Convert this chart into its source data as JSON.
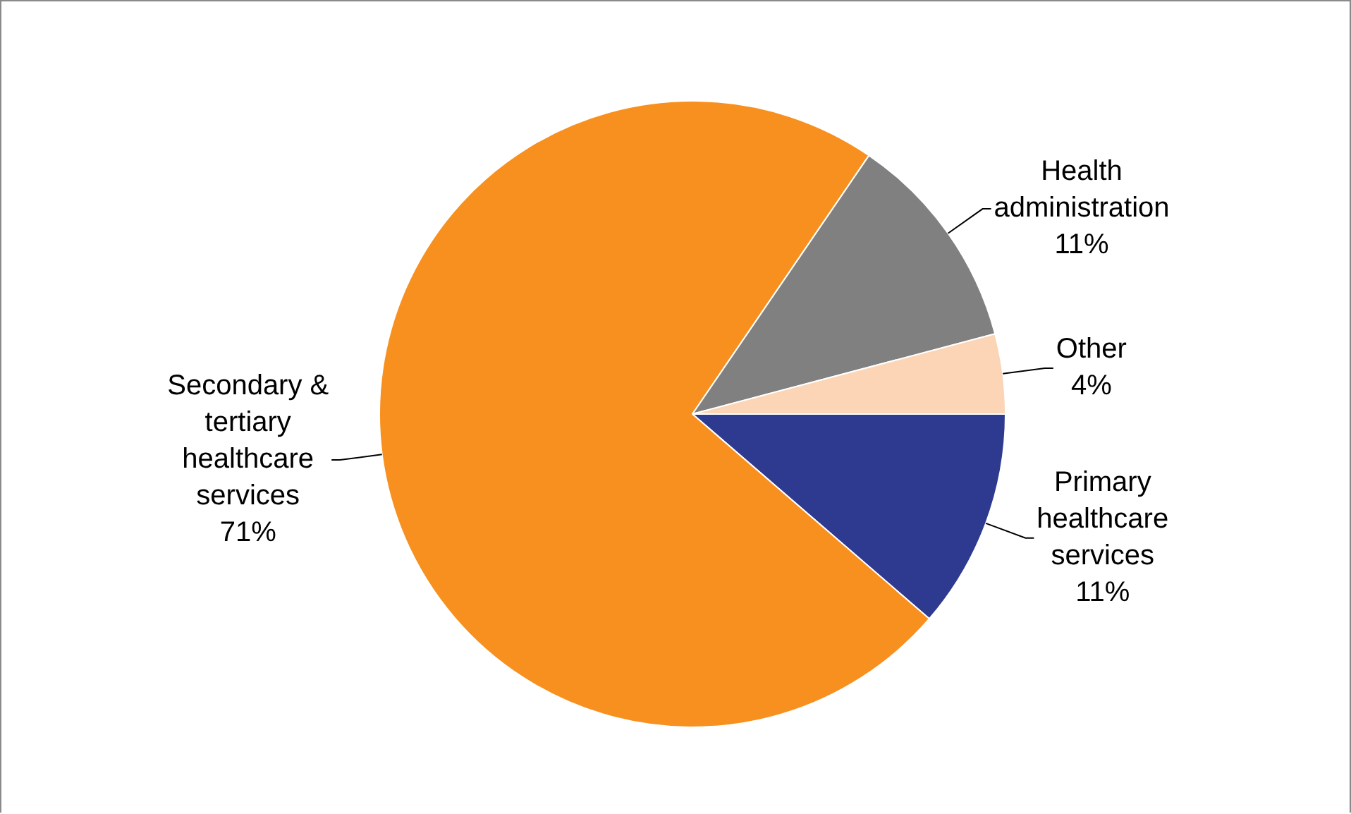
{
  "chart_data": {
    "type": "pie",
    "categories": [
      "Primary healthcare services",
      "Secondary & tertiary healthcare services",
      "Health administration",
      "Other"
    ],
    "values": [
      11,
      71,
      11,
      4
    ],
    "value_labels": [
      "11%",
      "71%",
      "11%",
      "4%"
    ],
    "colors": [
      "#2e3a8f",
      "#f7901e",
      "#808080",
      "#fbd5b5"
    ],
    "legend": false
  }
}
